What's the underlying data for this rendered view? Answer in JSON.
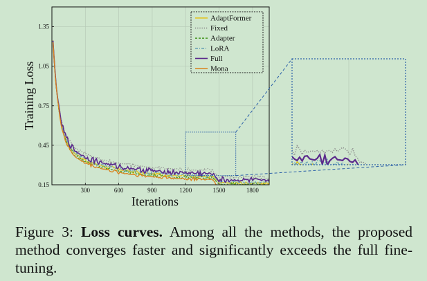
{
  "chart_data": {
    "type": "line",
    "xlabel": "Iterations",
    "ylabel": "Training Loss",
    "xlim": [
      0,
      1950
    ],
    "ylim": [
      0.15,
      1.5
    ],
    "x_ticks": [
      "300",
      "600",
      "900",
      "1200",
      "1500",
      "1800"
    ],
    "y_ticks": [
      "0.15",
      "0.45",
      "0.75",
      "1.05",
      "1.35"
    ],
    "grid": true,
    "legend_position": "top-right",
    "series": [
      {
        "name": "AdaptFormer",
        "color": "#e3c21b",
        "dash": "solid",
        "offset": 0.022,
        "noise": 0.01
      },
      {
        "name": "Fixed",
        "color": "#8a8a8a",
        "dash": "dotted",
        "offset": 0.07,
        "noise": 0.012
      },
      {
        "name": "Adapter",
        "color": "#4f9d2d",
        "dash": "dashed",
        "offset": 0.012,
        "noise": 0.01
      },
      {
        "name": "LoRA",
        "color": "#6aa3b5",
        "dash": "dashdot",
        "offset": 0.03,
        "noise": 0.01
      },
      {
        "name": "Full",
        "color": "#5b2a8c",
        "dash": "solid",
        "offset": 0.045,
        "noise": 0.016
      },
      {
        "name": "Mona",
        "color": "#d9821c",
        "dash": "solid",
        "offset": 0.0,
        "noise": 0.009
      }
    ],
    "zoom_window": {
      "x": [
        1200,
        1650
      ],
      "y": [
        0.22,
        0.55
      ]
    }
  },
  "caption": {
    "figure_label": "Figure 3:",
    "bold_title": "Loss curves.",
    "text": "Among all the methods, the proposed method converges faster and significantly exceeds the full fine-tuning."
  }
}
